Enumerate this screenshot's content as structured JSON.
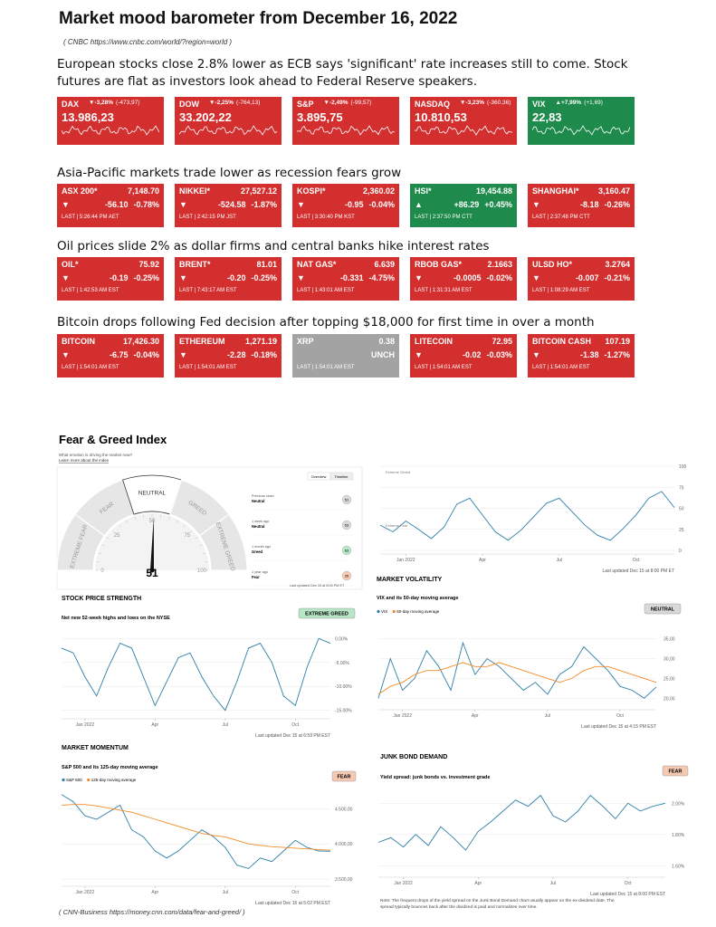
{
  "header": {
    "title": "Market mood barometer from December 16, 2022",
    "source": "( CNBC https://www.cnbc.com/world/?region=world )"
  },
  "sections": [
    {
      "headline": "European stocks close 2.8% lower as ECB says 'significant' rate increases still to come. Stock futures are flat as investors look ahead to Federal Reserve speakers.",
      "tiles": [
        {
          "name": "DAX",
          "pct": "▼-3,28%",
          "change": "(-473,97)",
          "value": "13.986,23",
          "color": "#d32f2f"
        },
        {
          "name": "DOW",
          "pct": "▼-2,25%",
          "change": "(-764,13)",
          "value": "33.202,22",
          "color": "#d32f2f"
        },
        {
          "name": "S&P",
          "pct": "▼-2,49%",
          "change": "(-99,57)",
          "value": "3.895,75",
          "color": "#d32f2f"
        },
        {
          "name": "NASDAQ",
          "pct": "▼-3,23%",
          "change": "(-360,36)",
          "value": "10.810,53",
          "color": "#d32f2f"
        },
        {
          "name": "VIX",
          "pct": "▲+7,99%",
          "change": "(+1,69)",
          "value": "22,83",
          "color": "#1e8a4c"
        }
      ]
    },
    {
      "headline": "Asia-Pacific markets trade lower as recession fears grow",
      "tiles": [
        {
          "name": "ASX 200*",
          "value": "7,148.70",
          "arrow": "▼",
          "change": "-56.10",
          "pct": "-0.78%",
          "time": "LAST | 5:26:44 PM AET",
          "color": "#d32f2f"
        },
        {
          "name": "NIKKEI*",
          "value": "27,527.12",
          "arrow": "▼",
          "change": "-524.58",
          "pct": "-1.87%",
          "time": "LAST | 2:42:15 PM JST",
          "color": "#d32f2f"
        },
        {
          "name": "KOSPI*",
          "value": "2,360.02",
          "arrow": "▼",
          "change": "-0.95",
          "pct": "-0.04%",
          "time": "LAST | 3:30:40 PM KST",
          "color": "#d32f2f"
        },
        {
          "name": "HSI*",
          "value": "19,454.88",
          "arrow": "▲",
          "change": "+86.29",
          "pct": "+0.45%",
          "time": "LAST | 2:37:50 PM CTT",
          "color": "#1e8a4c"
        },
        {
          "name": "SHANGHAI*",
          "value": "3,160.47",
          "arrow": "▼",
          "change": "-8.18",
          "pct": "-0.26%",
          "time": "LAST | 2:37:48 PM CTT",
          "color": "#d32f2f"
        }
      ]
    },
    {
      "headline": "Oil prices slide 2% as dollar firms and central banks hike interest rates",
      "tiles": [
        {
          "name": "OIL*",
          "value": "75.92",
          "arrow": "▼",
          "change": "-0.19",
          "pct": "-0.25%",
          "time": "LAST | 1:42:53 AM EST",
          "color": "#d32f2f"
        },
        {
          "name": "BRENT*",
          "value": "81.01",
          "arrow": "▼",
          "change": "-0.20",
          "pct": "-0.25%",
          "time": "LAST | 7:43:17 AM EST",
          "color": "#d32f2f"
        },
        {
          "name": "NAT GAS*",
          "value": "6.639",
          "arrow": "▼",
          "change": "-0.331",
          "pct": "-4.75%",
          "time": "LAST | 1:43:01 AM EST",
          "color": "#d32f2f"
        },
        {
          "name": "RBOB GAS*",
          "value": "2.1663",
          "arrow": "▼",
          "change": "-0.0005",
          "pct": "-0.02%",
          "time": "LAST | 1:31:31 AM EST",
          "color": "#d32f2f"
        },
        {
          "name": "ULSD HO*",
          "value": "3.2764",
          "arrow": "▼",
          "change": "-0.007",
          "pct": "-0.21%",
          "time": "LAST | 1:08:29 AM EST",
          "color": "#d32f2f"
        }
      ]
    },
    {
      "headline": "Bitcoin drops following Fed decision after topping $18,000 for first time in over a month",
      "tiles": [
        {
          "name": "BITCOIN",
          "value": "17,426.30",
          "arrow": "▼",
          "change": "-6.75",
          "pct": "-0.04%",
          "time": "LAST | 1:54:01 AM EST",
          "color": "#d32f2f"
        },
        {
          "name": "ETHEREUM",
          "value": "1,271.19",
          "arrow": "▼",
          "change": "-2.28",
          "pct": "-0.18%",
          "time": "LAST | 1:54:01 AM EST",
          "color": "#d32f2f"
        },
        {
          "name": "XRP",
          "value": "0.38",
          "change": "UNCH",
          "time": "LAST | 1:54:01 AM EST",
          "color": "#a3a3a3"
        },
        {
          "name": "LITECOIN",
          "value": "72.95",
          "arrow": "▼",
          "change": "-0.02",
          "pct": "-0.03%",
          "time": "LAST | 1:54:01 AM EST",
          "color": "#d32f2f"
        },
        {
          "name": "BITCOIN CASH",
          "value": "107.19",
          "arrow": "▼",
          "change": "-1.38",
          "pct": "-1.27%",
          "time": "LAST | 1:54:01 AM EST",
          "color": "#d32f2f"
        }
      ]
    }
  ],
  "fear_greed": {
    "title": "Fear & Greed Index",
    "subtitle": "What emotion is driving the market now?",
    "link": "Learn more about the index",
    "tabs": [
      "Overview",
      "Timeline"
    ],
    "history": [
      {
        "label": "Previous close",
        "rating": "Neutral",
        "value": "51",
        "color": "#d9d9d9"
      },
      {
        "label": "1 week ago",
        "rating": "Neutral",
        "value": "53",
        "color": "#d9d9d9"
      },
      {
        "label": "1 month ago",
        "rating": "Greed",
        "value": "63",
        "color": "#b8e6c8"
      },
      {
        "label": "1 year ago",
        "rating": "Fear",
        "value": "35",
        "color": "#f6c9b4"
      }
    ],
    "updated": "Last updated Dec 15 at 8:00 PM ET"
  },
  "chart_data": [
    {
      "type": "gauge",
      "value": 51,
      "xlim": [
        0,
        100
      ],
      "xticks": [
        0,
        25,
        50,
        75,
        100
      ],
      "zones": [
        "EXTREME FEAR",
        "FEAR",
        "NEUTRAL",
        "GREED",
        "EXTREME GREED"
      ],
      "active_zone": 2
    },
    {
      "type": "line",
      "annotations": [
        "Extreme Greed",
        "Extreme Fear"
      ],
      "categories": [
        null,
        null,
        "Jan 2022",
        null,
        null,
        null,
        null,
        null,
        "Apr",
        null,
        null,
        null,
        null,
        null,
        "Jul",
        null,
        null,
        null,
        null,
        null,
        "Oct",
        null,
        null,
        null
      ],
      "series": [
        {
          "name": null,
          "color": "#2f7fa8",
          "values": [
            30,
            22,
            35,
            25,
            14,
            28,
            55,
            62,
            42,
            22,
            12,
            24,
            40,
            56,
            62,
            46,
            30,
            18,
            12,
            26,
            42,
            62,
            70,
            51
          ]
        }
      ],
      "ylim": [
        0,
        100
      ],
      "yticks": [
        0,
        25,
        50,
        75,
        100
      ],
      "updated": "Last updated Dec 15 at 8:00 PM ET"
    },
    {
      "type": "line",
      "title": "STOCK PRICE STRENGTH",
      "subtitle": "Net new 52-week highs and lows on the NYSE",
      "badge": "EXTREME GREED",
      "badge_color": "#b8e6c8",
      "categories": [
        null,
        null,
        "Jan 2022",
        null,
        null,
        null,
        null,
        null,
        "Apr",
        null,
        null,
        null,
        null,
        null,
        "Jul",
        null,
        null,
        null,
        null,
        null,
        "Oct",
        null,
        null,
        null
      ],
      "series": [
        {
          "name": null,
          "color": "#2f7fa8",
          "values": [
            -2,
            -3,
            -8,
            -12,
            -6,
            -1,
            -2,
            -8,
            -14,
            -9,
            -4,
            -3,
            -8,
            -12,
            -15,
            -9,
            -2,
            -1,
            -5,
            -12,
            -14,
            -6,
            0,
            -1
          ]
        }
      ],
      "ylim": [
        -16,
        1
      ],
      "yticks": [
        {
          "value": 0,
          "label": "0.00%"
        },
        {
          "value": -5,
          "label": "-5.00%"
        },
        {
          "value": -10,
          "label": "-10.00%"
        },
        {
          "value": -15,
          "label": "-15.00%"
        }
      ],
      "updated": "Last updated Dec 15 at 6:59 PM EST"
    },
    {
      "type": "line",
      "title": "MARKET VOLATILITY",
      "subtitle": "VIX and its 50-day moving average",
      "badge": "NEUTRAL",
      "badge_color": "#d9d9d9",
      "legend": true,
      "categories": [
        null,
        null,
        "Jan 2022",
        null,
        null,
        null,
        null,
        null,
        "Apr",
        null,
        null,
        null,
        null,
        null,
        "Jul",
        null,
        null,
        null,
        null,
        null,
        "Oct",
        null,
        null,
        null
      ],
      "series": [
        {
          "name": "VIX",
          "color": "#2f7fa8",
          "values": [
            20,
            30,
            22,
            25,
            32,
            28,
            22,
            34,
            26,
            30,
            28,
            25,
            22,
            24,
            21,
            26,
            28,
            33,
            30,
            27,
            23,
            22,
            20,
            22.83
          ]
        },
        {
          "name": "50-day moving average",
          "color": "#f28c28",
          "values": [
            21,
            23,
            24,
            26,
            27,
            27,
            28,
            29,
            28,
            28,
            29,
            28,
            27,
            26,
            25,
            24,
            25,
            27,
            28,
            28,
            27,
            26,
            25,
            24
          ]
        }
      ],
      "ylim": [
        18,
        37
      ],
      "yticks": [
        {
          "value": 35,
          "label": "35,00"
        },
        {
          "value": 30,
          "label": "30,00"
        },
        {
          "value": 25,
          "label": "25,00"
        },
        {
          "value": 20,
          "label": "20,00"
        }
      ],
      "updated": "Last updated Dec 15 at 4:15 PM EST"
    },
    {
      "type": "line",
      "title": "MARKET MOMENTUM",
      "subtitle": "S&P 500 and its 125-day moving average",
      "badge": "FEAR",
      "badge_color": "#f6c9b4",
      "legend": true,
      "categories": [
        null,
        null,
        "Jan 2022",
        null,
        null,
        null,
        null,
        null,
        "Apr",
        null,
        null,
        null,
        null,
        null,
        "Jul",
        null,
        null,
        null,
        null,
        null,
        "Oct",
        null,
        null,
        null
      ],
      "series": [
        {
          "name": "S&P 500",
          "color": "#2f7fa8",
          "values": [
            4700,
            4600,
            4400,
            4350,
            4450,
            4550,
            4200,
            4100,
            3900,
            3800,
            3900,
            4050,
            4200,
            4100,
            3950,
            3700,
            3650,
            3800,
            3750,
            3900,
            4050,
            3950,
            3900,
            3895.75
          ]
        },
        {
          "name": "125-day moving average",
          "color": "#f28c28",
          "values": [
            4550,
            4560,
            4560,
            4540,
            4510,
            4480,
            4450,
            4400,
            4350,
            4300,
            4250,
            4200,
            4150,
            4120,
            4100,
            4050,
            4000,
            3980,
            3960,
            3950,
            3940,
            3930,
            3920,
            3910
          ]
        }
      ],
      "ylim": [
        3450,
        4800
      ],
      "yticks": [
        {
          "value": 4500,
          "label": "4.500,00"
        },
        {
          "value": 4000,
          "label": "4.000,00"
        },
        {
          "value": 3500,
          "label": "3.500,00"
        }
      ],
      "updated": "Last updated Dec 15 at 5:02 PM EST"
    },
    {
      "type": "line",
      "title": "JUNK BOND DEMAND",
      "subtitle": "Yield spread: junk bonds vs. investment grade",
      "badge": "FEAR",
      "badge_color": "#f6c9b4",
      "categories": [
        null,
        null,
        "Jan 2022",
        null,
        null,
        null,
        null,
        null,
        "Apr",
        null,
        null,
        null,
        null,
        null,
        "Jul",
        null,
        null,
        null,
        null,
        null,
        "Oct",
        null,
        null,
        null
      ],
      "series": [
        {
          "name": null,
          "color": "#2f7fa8",
          "values": [
            1.75,
            1.78,
            1.72,
            1.8,
            1.73,
            1.85,
            1.78,
            1.7,
            1.82,
            1.88,
            1.95,
            2.02,
            1.98,
            2.05,
            1.92,
            1.88,
            1.95,
            2.05,
            1.98,
            1.9,
            2.0,
            1.95,
            1.98,
            2.0
          ]
        }
      ],
      "ylim": [
        1.55,
        2.1
      ],
      "yticks": [
        {
          "value": 2.0,
          "label": "2.00%"
        },
        {
          "value": 1.8,
          "label": "1.80%"
        },
        {
          "value": 1.6,
          "label": "1.60%"
        }
      ],
      "note": "Note: The frequent drops of the yield spread on the Junk Bond Demand chart usually appear on the ex-dividend date. The spread typically bounces back after the dividend is paid and normalizes over time.",
      "updated": "Last updated Dec 15 at 8:00 PM EST"
    }
  ],
  "footer": "( CNN-Business https://money.cnn.com/data/fear-and-greed/ )"
}
